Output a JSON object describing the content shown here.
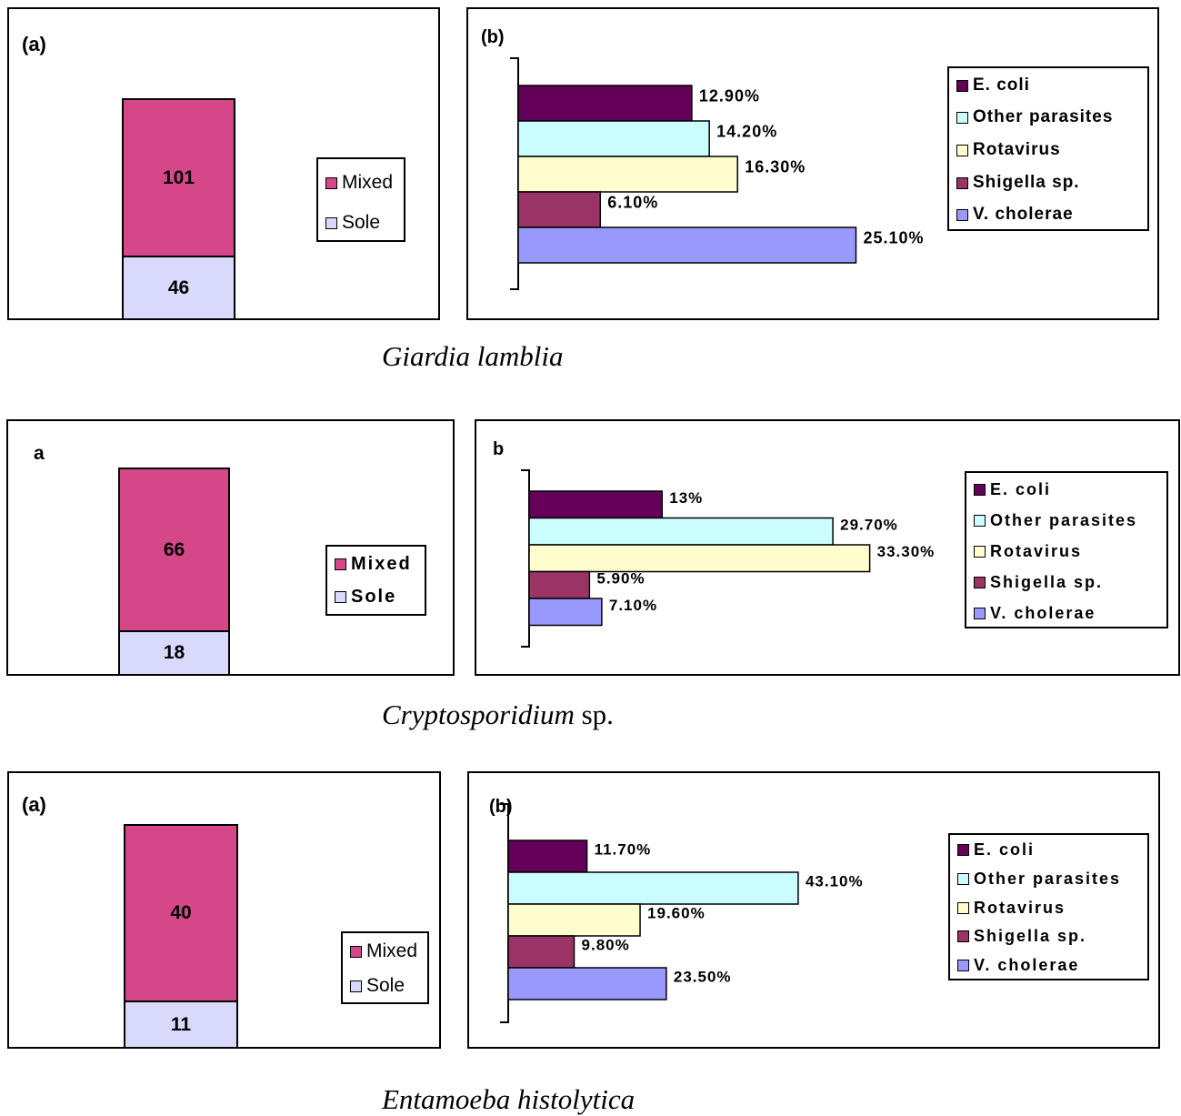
{
  "colors": {
    "mixed": "#d6478a",
    "sole": "#d9d9fb",
    "ecoli": "#650059",
    "other": "#ccfdfe",
    "rotavirus": "#fefdcd",
    "shigella": "#9b3466",
    "vcholerae": "#9999fd"
  },
  "figures": [
    {
      "caption_genus": "Giardia lamblia",
      "caption_suffix": "",
      "panel_a_label": "(a)",
      "panel_b_label": "(b)",
      "stack": {
        "mixed": {
          "label": "Mixed",
          "value": 101,
          "text": "101"
        },
        "sole": {
          "label": "Sole",
          "value": 46,
          "text": "46"
        }
      },
      "bars": [
        {
          "name": "E. coli",
          "value": 12.9,
          "label": "12.90%"
        },
        {
          "name": "Other parasites",
          "value": 14.2,
          "label": "14.20%"
        },
        {
          "name": "Rotavirus",
          "value": 16.3,
          "label": "16.30%"
        },
        {
          "name": "Shigella sp.",
          "value": 6.1,
          "label": "6.10%"
        },
        {
          "name": "V. cholerae",
          "value": 25.1,
          "label": "25.10%"
        }
      ]
    },
    {
      "caption_genus": "Cryptosporidium",
      "caption_suffix": " sp.",
      "panel_a_label": "a",
      "panel_b_label": "b",
      "stack": {
        "mixed": {
          "label": "Mixed",
          "value": 66,
          "text": "66"
        },
        "sole": {
          "label": "Sole",
          "value": 18,
          "text": "18"
        }
      },
      "bars": [
        {
          "name": "E. coli",
          "value": 13,
          "label": "13%"
        },
        {
          "name": "Other parasites",
          "value": 29.7,
          "label": "29.70%"
        },
        {
          "name": "Rotavirus",
          "value": 33.3,
          "label": "33.30%"
        },
        {
          "name": "Shigella sp.",
          "value": 5.9,
          "label": "5.90%"
        },
        {
          "name": "V. cholerae",
          "value": 7.1,
          "label": "7.10%"
        }
      ]
    },
    {
      "caption_genus": "Entamoeba histolytica",
      "caption_suffix": "",
      "panel_a_label": "(a)",
      "panel_b_label": "(b)",
      "stack": {
        "mixed": {
          "label": "Mixed",
          "value": 40,
          "text": "40"
        },
        "sole": {
          "label": "Sole",
          "value": 11,
          "text": "11"
        }
      },
      "bars": [
        {
          "name": "E. coli",
          "value": 11.7,
          "label": "11.70%"
        },
        {
          "name": "Other parasites",
          "value": 43.1,
          "label": "43.10%"
        },
        {
          "name": "Rotavirus",
          "value": 19.6,
          "label": "19.60%"
        },
        {
          "name": "Shigella sp.",
          "value": 9.8,
          "label": "9.80%"
        },
        {
          "name": "V. cholerae",
          "value": 23.5,
          "label": "23.50%"
        }
      ]
    }
  ],
  "chart_data": [
    {
      "type": "bar",
      "stacked": true,
      "panel": "(a)",
      "figure": "Giardia lamblia",
      "series": [
        {
          "name": "Mixed",
          "values": [
            101
          ]
        },
        {
          "name": "Sole",
          "values": [
            46
          ]
        }
      ],
      "legend": "right"
    },
    {
      "type": "bar",
      "orientation": "horizontal",
      "panel": "(b)",
      "figure": "Giardia lamblia",
      "categories": [
        "E. coli",
        "Other parasites",
        "Rotavirus",
        "Shigella sp.",
        "V. cholerae"
      ],
      "values": [
        12.9,
        14.2,
        16.3,
        6.1,
        25.1
      ],
      "unit": "%",
      "legend": "right"
    },
    {
      "type": "bar",
      "stacked": true,
      "panel": "a",
      "figure": "Cryptosporidium sp.",
      "series": [
        {
          "name": "Mixed",
          "values": [
            66
          ]
        },
        {
          "name": "Sole",
          "values": [
            18
          ]
        }
      ],
      "legend": "right"
    },
    {
      "type": "bar",
      "orientation": "horizontal",
      "panel": "b",
      "figure": "Cryptosporidium sp.",
      "categories": [
        "E. coli",
        "Other parasites",
        "Rotavirus",
        "Shigella sp.",
        "V. cholerae"
      ],
      "values": [
        13,
        29.7,
        33.3,
        5.9,
        7.1
      ],
      "unit": "%",
      "legend": "right"
    },
    {
      "type": "bar",
      "stacked": true,
      "panel": "(a)",
      "figure": "Entamoeba histolytica",
      "series": [
        {
          "name": "Mixed",
          "values": [
            40
          ]
        },
        {
          "name": "Sole",
          "values": [
            11
          ]
        }
      ],
      "legend": "right"
    },
    {
      "type": "bar",
      "orientation": "horizontal",
      "panel": "(b)",
      "figure": "Entamoeba histolytica",
      "categories": [
        "E. coli",
        "Other parasites",
        "Rotavirus",
        "Shigella sp.",
        "V. cholerae"
      ],
      "values": [
        11.7,
        43.1,
        19.6,
        9.8,
        23.5
      ],
      "unit": "%",
      "legend": "right"
    }
  ]
}
